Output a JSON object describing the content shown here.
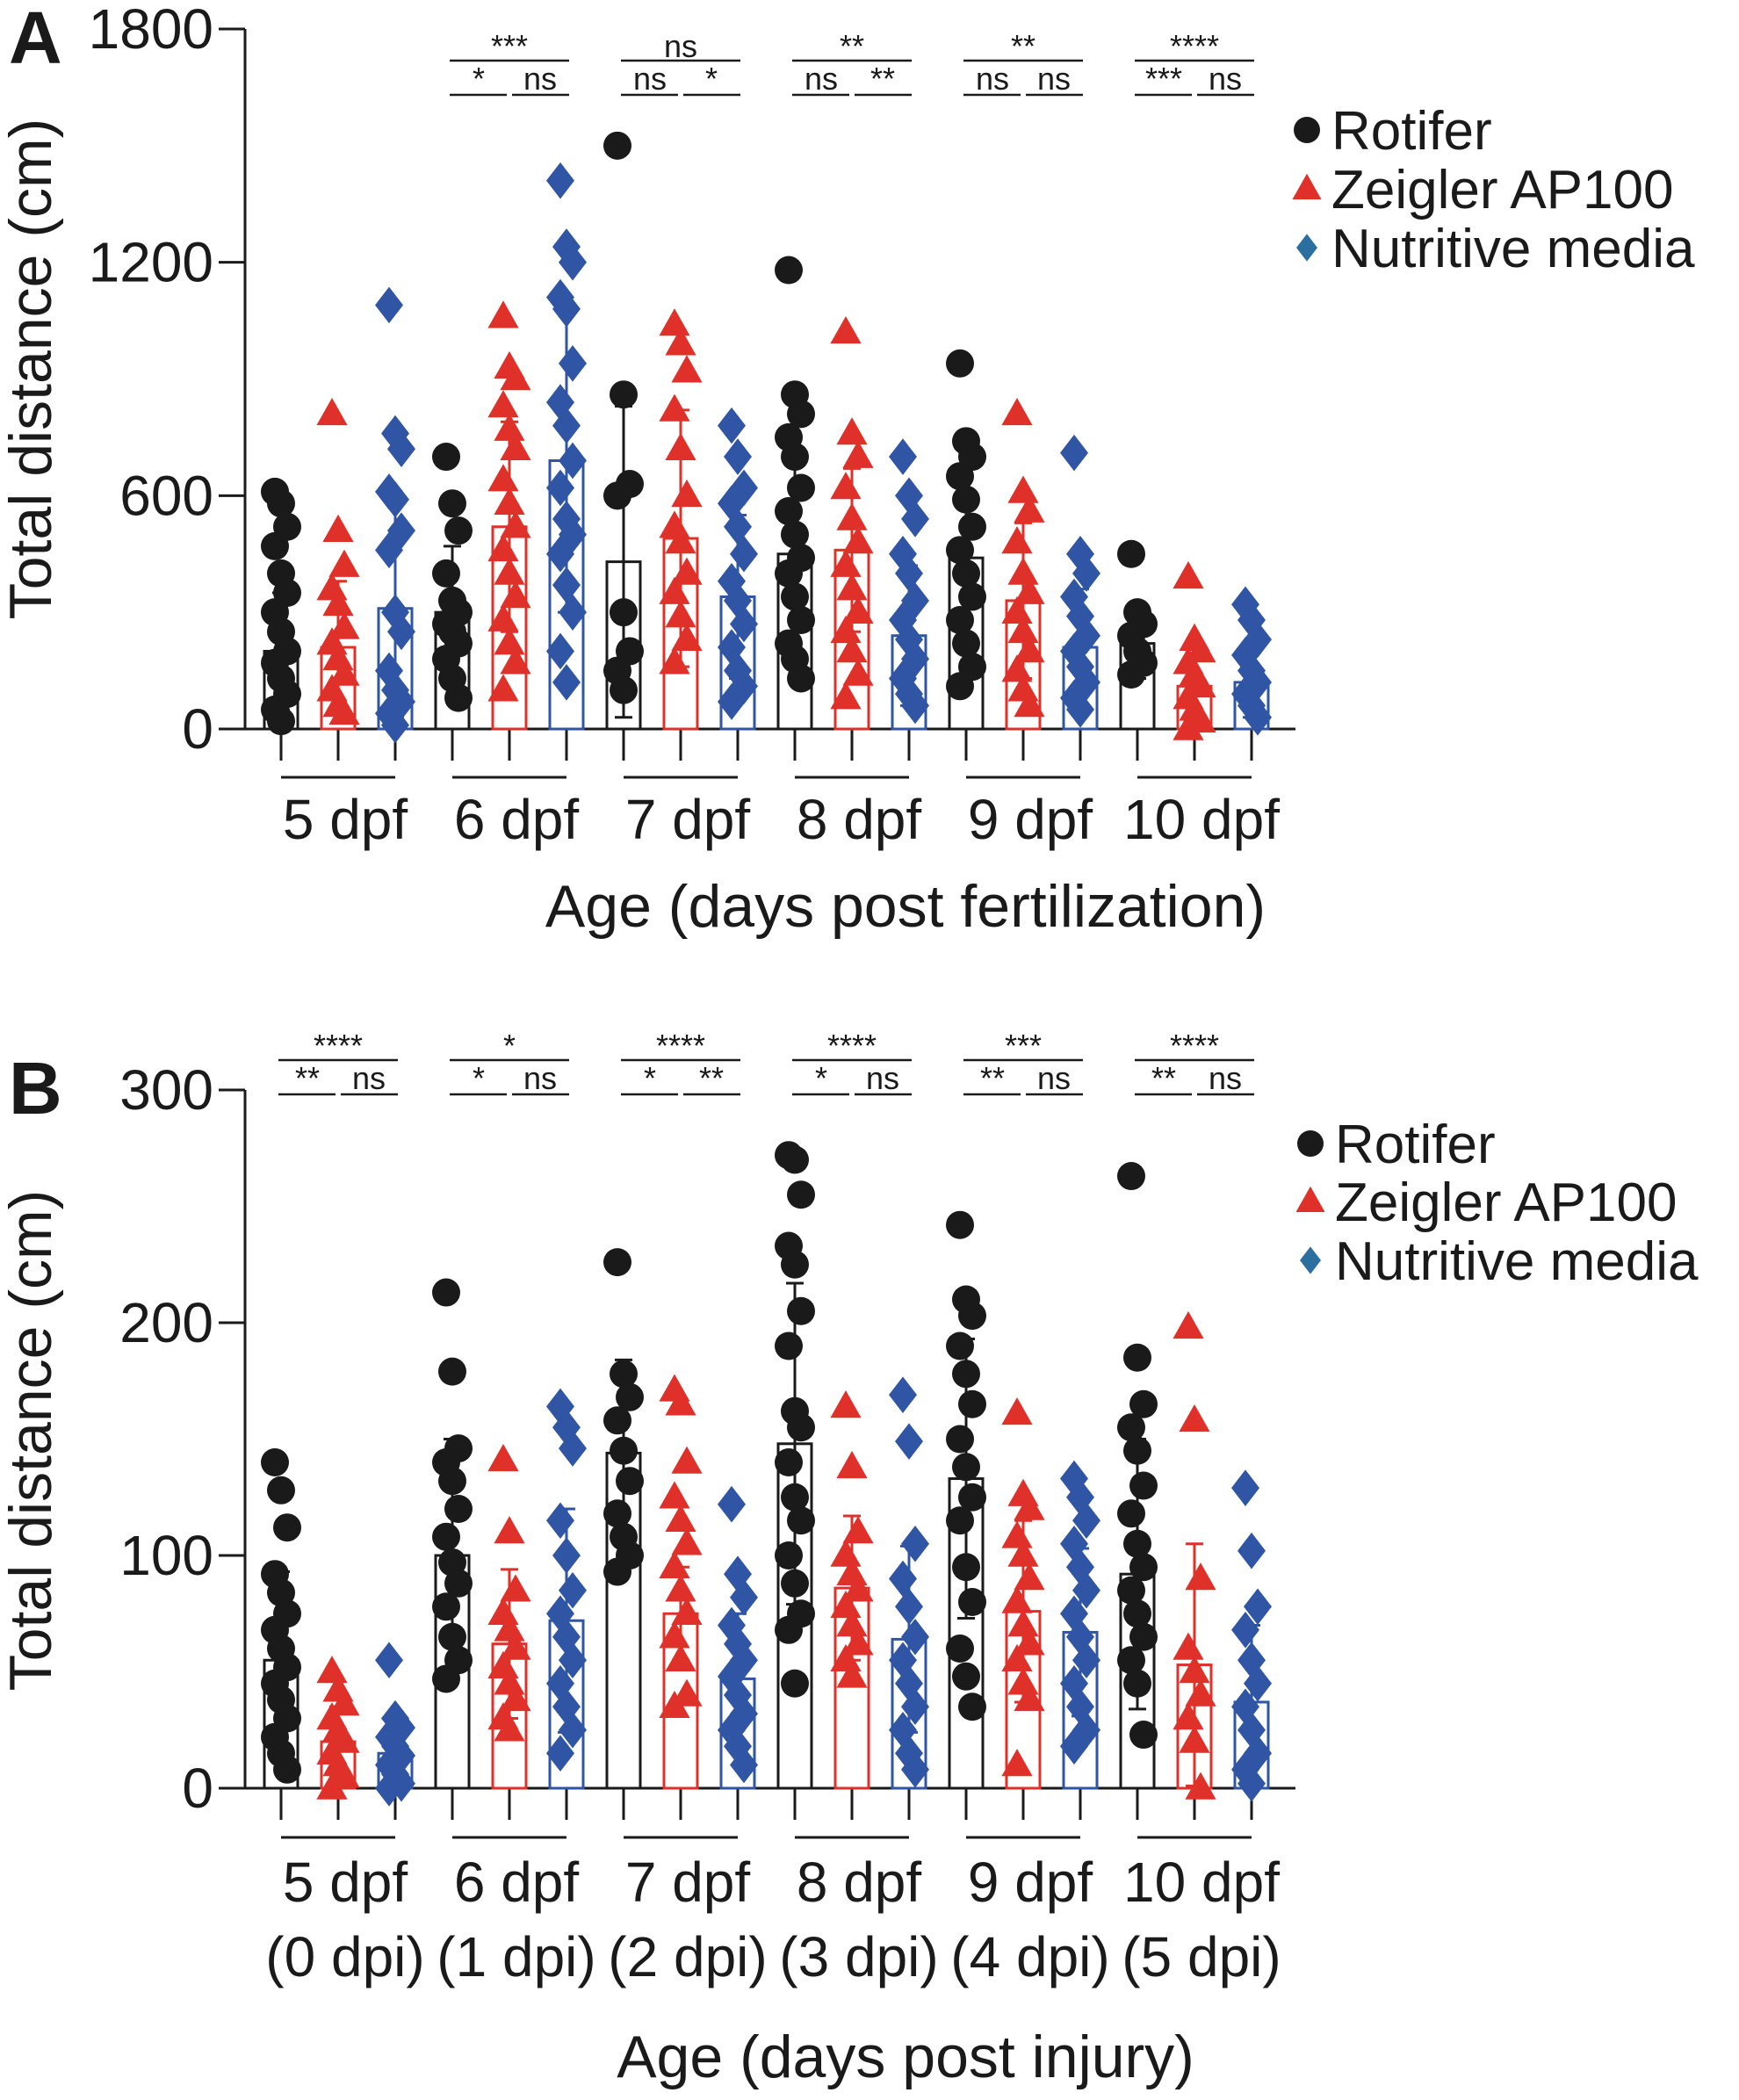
{
  "chart_data": [
    {
      "panel": "A",
      "type": "bar",
      "ylabel": "Total distance (cm)",
      "xlabel": "Age (days post fertilization)",
      "ylim": [
        0,
        1800
      ],
      "yticks": [
        0,
        600,
        1200,
        1800
      ],
      "grid": false,
      "legend": "top-right",
      "categories": [
        [
          "5 dpf"
        ],
        [
          "6 dpf"
        ],
        [
          "7 dpf"
        ],
        [
          "8 dpf"
        ],
        [
          "9 dpf"
        ],
        [
          "10 dpf"
        ]
      ],
      "significance": [
        null,
        {
          "top": "***",
          "left": "*",
          "right": "ns"
        },
        {
          "top": "ns",
          "left": "ns",
          "right": "*"
        },
        {
          "top": "**",
          "left": "ns",
          "right": "**"
        },
        {
          "top": "**",
          "left": "ns",
          "right": "ns"
        },
        {
          "top": "****",
          "left": "***",
          "right": "ns"
        }
      ],
      "series": [
        {
          "name": "Rotifer",
          "color": "#1a1a1a",
          "marker": "circle",
          "mean": [
            200,
            300,
            430,
            450,
            440,
            220
          ],
          "sd": [
            150,
            170,
            400,
            250,
            230,
            90
          ],
          "points": [
            [
              610,
              580,
              520,
              470,
              400,
              350,
              300,
              250,
              200,
              170,
              130,
              90,
              50,
              20
            ],
            [
              700,
              580,
              510,
              400,
              330,
              300,
              270,
              250,
              220,
              180,
              130,
              80
            ],
            [
              1500,
              860,
              630,
              600,
              300,
              200,
              150,
              100
            ],
            [
              1180,
              860,
              810,
              750,
              700,
              620,
              560,
              500,
              440,
              400,
              340,
              280,
              220,
              180,
              130
            ],
            [
              940,
              740,
              700,
              650,
              590,
              520,
              460,
              400,
              340,
              280,
              220,
              160,
              110
            ],
            [
              450,
              300,
              270,
              240,
              200,
              170,
              140
            ]
          ]
        },
        {
          "name": "Zeigler AP100",
          "color": "#e0302a",
          "marker": "triangle",
          "mean": [
            210,
            520,
            490,
            460,
            330,
            110
          ],
          "sd": [
            170,
            270,
            330,
            210,
            200,
            100
          ],
          "points": [
            [
              810,
              510,
              420,
              360,
              320,
              260,
              220,
              180,
              140,
              100,
              60,
              40
            ],
            [
              1060,
              930,
              900,
              830,
              770,
              720,
              640,
              580,
              520,
              460,
              400,
              340,
              280,
              220,
              170,
              100
            ],
            [
              1040,
              990,
              920,
              820,
              720,
              600,
              520,
              480,
              400,
              350,
              290,
              230,
              170
            ],
            [
              1020,
              760,
              700,
              620,
              540,
              480,
              420,
              360,
              300,
              250,
              200,
              140,
              80
            ],
            [
              810,
              610,
              560,
              480,
              400,
              350,
              300,
              250,
              200,
              150,
              100,
              60
            ],
            [
              390,
              230,
              200,
              170,
              140,
              110,
              80,
              50,
              20,
              0
            ]
          ]
        },
        {
          "name": "Nutritive media",
          "color": "#2f55a4",
          "legend_color": "#2a6fa0",
          "marker": "diamond",
          "mean": [
            310,
            690,
            340,
            240,
            210,
            120
          ],
          "sd": [
            280,
            390,
            210,
            180,
            150,
            90
          ],
          "points": [
            [
              1090,
              760,
              720,
              610,
              590,
              510,
              460,
              300,
              250,
              150,
              100,
              70,
              40,
              10
            ],
            [
              1410,
              1240,
              1200,
              1110,
              1080,
              940,
              840,
              780,
              690,
              620,
              540,
              500,
              450,
              370,
              300,
              200,
              120
            ],
            [
              780,
              700,
              620,
              580,
              520,
              450,
              380,
              330,
              270,
              210,
              150,
              110,
              70
            ],
            [
              700,
              600,
              540,
              450,
              400,
              330,
              280,
              230,
              180,
              130,
              90,
              60
            ],
            [
              710,
              450,
              400,
              340,
              290,
              240,
              200,
              160,
              120,
              80,
              50
            ],
            [
              320,
              280,
              230,
              190,
              150,
              120,
              90,
              60,
              30
            ]
          ]
        }
      ]
    },
    {
      "panel": "B",
      "type": "bar",
      "ylabel": "Total distance (cm)",
      "xlabel": "Age (days post injury)",
      "ylim": [
        0,
        300
      ],
      "yticks": [
        0,
        100,
        200,
        300
      ],
      "grid": false,
      "legend": "top-right",
      "categories": [
        [
          "5 dpf",
          "(0 dpi)"
        ],
        [
          "6 dpf",
          "(1 dpi)"
        ],
        [
          "7 dpf",
          "(2 dpi)"
        ],
        [
          "8 dpf",
          "(3 dpi)"
        ],
        [
          "9 dpf",
          "(4 dpi)"
        ],
        [
          "10 dpf",
          "(5 dpi)"
        ]
      ],
      "significance": [
        {
          "top": "****",
          "left": "**",
          "right": "ns"
        },
        {
          "top": "*",
          "left": "*",
          "right": "ns"
        },
        {
          "top": "****",
          "left": "*",
          "right": "**"
        },
        {
          "top": "****",
          "left": "*",
          "right": "ns"
        },
        {
          "top": "***",
          "left": "**",
          "right": "ns"
        },
        {
          "top": "****",
          "left": "**",
          "right": "ns"
        }
      ],
      "series": [
        {
          "name": "Rotifer",
          "color": "#1a1a1a",
          "marker": "circle",
          "mean": [
            55,
            100,
            144,
            148,
            133,
            92
          ],
          "sd": [
            38,
            50,
            40,
            69,
            60,
            58
          ],
          "points": [
            [
              140,
              128,
              112,
              92,
              84,
              75,
              68,
              60,
              52,
              45,
              38,
              30,
              22,
              15,
              8
            ],
            [
              213,
              179,
              146,
              140,
              132,
              120,
              108,
              97,
              88,
              78,
              65,
              55,
              47
            ],
            [
              226,
              178,
              168,
              158,
              145,
              132,
              118,
              108,
              100,
              93
            ],
            [
              272,
              270,
              255,
              233,
              225,
              205,
              190,
              162,
              155,
              140,
              125,
              115,
              100,
              88,
              75,
              68,
              45
            ],
            [
              242,
              210,
              203,
              190,
              178,
              165,
              150,
              138,
              125,
              115,
              95,
              80,
              60,
              48,
              35
            ],
            [
              263,
              185,
              165,
              155,
              145,
              130,
              118,
              105,
              95,
              85,
              75,
              65,
              55,
              45,
              23
            ]
          ]
        },
        {
          "name": "Zeigler AP100",
          "color": "#e0302a",
          "marker": "triangle",
          "mean": [
            20,
            62,
            75,
            86,
            76,
            53
          ],
          "sd": [
            15,
            32,
            20,
            31,
            39,
            52
          ],
          "points": [
            [
              50,
              42,
              36,
              30,
              25,
              20,
              15,
              10,
              5,
              0
            ],
            [
              141,
              110,
              85,
              75,
              68,
              60,
              52,
              45,
              38,
              30,
              25
            ],
            [
              171,
              165,
              140,
              125,
              115,
              105,
              95,
              85,
              75,
              65,
              55,
              40,
              35
            ],
            [
              164,
              138,
              110,
              100,
              92,
              85,
              78,
              70,
              62,
              55,
              48
            ],
            [
              161,
              126,
              120,
              108,
              100,
              90,
              80,
              70,
              62,
              55,
              45,
              38,
              10
            ],
            [
              198,
              158,
              90,
              60,
              50,
              40,
              30,
              20,
              0
            ]
          ]
        },
        {
          "name": "Nutritive media",
          "color": "#2f55a4",
          "legend_color": "#2a6fa0",
          "marker": "diamond",
          "mean": [
            15,
            72,
            47,
            64,
            67,
            37
          ],
          "sd": [
            14,
            48,
            28,
            40,
            36,
            33
          ],
          "points": [
            [
              55,
              30,
              26,
              22,
              18,
              14,
              10,
              6,
              2,
              0
            ],
            [
              164,
              155,
              146,
              115,
              100,
              85,
              75,
              65,
              55,
              45,
              35,
              25,
              15
            ],
            [
              122,
              92,
              82,
              70,
              62,
              55,
              48,
              40,
              32,
              25,
              18,
              10
            ],
            [
              169,
              149,
              105,
              90,
              78,
              65,
              55,
              45,
              35,
              25,
              15,
              8
            ],
            [
              133,
              125,
              115,
              105,
              95,
              85,
              75,
              65,
              55,
              45,
              35,
              25,
              18
            ],
            [
              129,
              102,
              78,
              68,
              55,
              45,
              35,
              25,
              15,
              8,
              2
            ]
          ]
        }
      ]
    }
  ]
}
